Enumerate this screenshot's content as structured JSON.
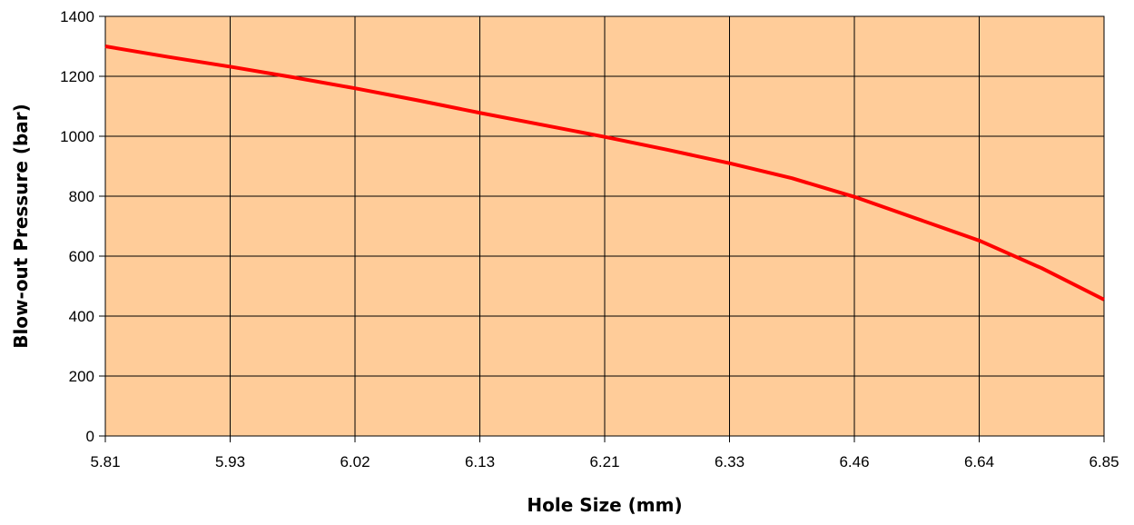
{
  "chart_data": {
    "type": "line",
    "categories": [
      "5.81",
      "5.93",
      "6.02",
      "6.13",
      "6.21",
      "6.33",
      "6.46",
      "6.64",
      "6.85"
    ],
    "x": [
      0,
      0.5,
      1,
      1.5,
      2,
      2.5,
      3,
      3.5,
      4,
      4.5,
      5,
      5.5,
      6,
      6.5,
      7,
      7.5,
      8
    ],
    "series": [
      {
        "color": "#ff0000",
        "values": [
          1300,
          1265,
          1232,
          1197,
          1160,
          1120,
          1078,
          1038,
          998,
          955,
          910,
          860,
          798,
          725,
          652,
          560,
          455
        ]
      }
    ],
    "xlabel": "Hole Size (mm)",
    "ylabel": "Blow-out Pressure (bar)",
    "ylim": [
      0,
      1400
    ],
    "yticks": [
      "0",
      "200",
      "400",
      "600",
      "800",
      "1000",
      "1200",
      "1400"
    ],
    "grid": true,
    "legend": "none",
    "plot_background": "#ffcc99",
    "grid_color": "#000000"
  }
}
